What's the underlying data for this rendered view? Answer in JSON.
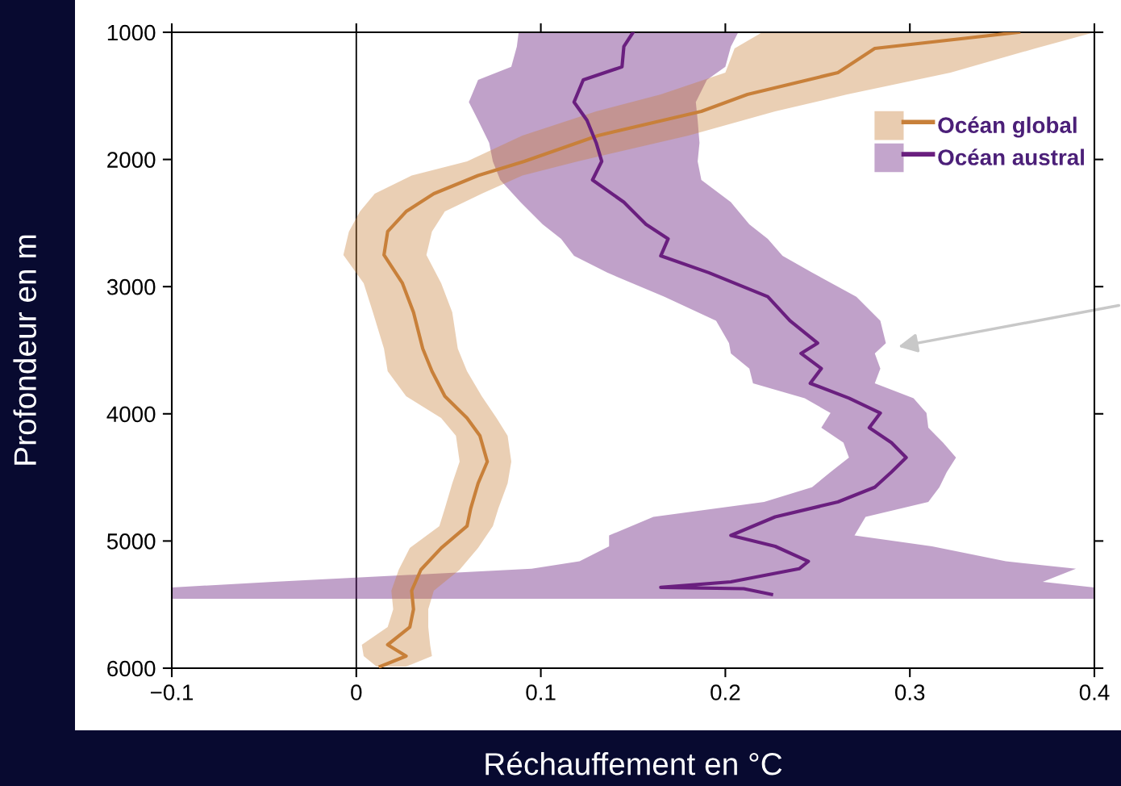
{
  "chart_data": {
    "type": "line",
    "orientation": "horizontal",
    "xlabel": "Réchauffement en °C",
    "ylabel": "Profondeur en m",
    "xlim": [
      -0.1,
      0.4
    ],
    "xticks": [
      {
        "value": -0.1,
        "label": "−0.1"
      },
      0,
      0.1,
      0.2,
      0.3,
      0.4
    ],
    "ylim": [
      6000,
      1000
    ],
    "yticks": [
      1000,
      2000,
      3000,
      4000,
      5000,
      6000
    ],
    "grid": false,
    "legend": "top right",
    "marker": "none",
    "line_style": "solid",
    "ref_lines": [
      {
        "axis": "x",
        "value": 0,
        "color": "#000000"
      }
    ],
    "series": [
      {
        "name": "Océan global",
        "color": "#c8803a",
        "x": [
          1000,
          1127,
          1317,
          1489,
          1622,
          1812,
          2015,
          2126,
          2269,
          2409,
          2567,
          2751,
          2973,
          3202,
          3487,
          3665,
          3862,
          4033,
          4173,
          4376,
          4547,
          4744,
          4883,
          5055,
          5226,
          5391,
          5537,
          5677,
          5816,
          5905,
          5987
        ],
        "values": [
          0.359,
          0.281,
          0.261,
          0.212,
          0.187,
          0.131,
          0.091,
          0.066,
          0.042,
          0.027,
          0.017,
          0.015,
          0.025,
          0.031,
          0.036,
          0.041,
          0.048,
          0.06,
          0.067,
          0.071,
          0.066,
          0.062,
          0.06,
          0.046,
          0.035,
          0.03,
          0.031,
          0.029,
          0.017,
          0.027,
          0.013
        ],
        "lower": [
          0.22,
          0.205,
          0.2,
          0.165,
          0.13,
          0.09,
          0.06,
          0.03,
          0.01,
          0.002,
          -0.004,
          -0.007,
          0.004,
          0.009,
          0.015,
          0.017,
          0.027,
          0.046,
          0.054,
          0.056,
          0.052,
          0.048,
          0.045,
          0.029,
          0.023,
          0.019,
          0.02,
          0.017,
          0.003,
          0.004,
          0.011
        ],
        "upper": [
          0.4,
          0.368,
          0.322,
          0.266,
          0.227,
          0.18,
          0.12,
          0.09,
          0.068,
          0.048,
          0.041,
          0.038,
          0.046,
          0.052,
          0.055,
          0.06,
          0.068,
          0.076,
          0.082,
          0.084,
          0.082,
          0.077,
          0.074,
          0.066,
          0.056,
          0.042,
          0.039,
          0.039,
          0.04,
          0.041,
          0.027
        ]
      },
      {
        "name": "Océan austral",
        "color": "#6a1f7f",
        "x": [
          1000,
          1112,
          1272,
          1374,
          1549,
          1692,
          1869,
          2015,
          2161,
          2336,
          2510,
          2624,
          2758,
          2890,
          3079,
          3268,
          3444,
          3525,
          3644,
          3760,
          3877,
          3994,
          4109,
          4227,
          4344,
          4458,
          4577,
          4693,
          4810,
          4956,
          5042,
          5160,
          5218,
          5321,
          5365,
          5375,
          5420,
          5454
        ],
        "values": [
          0.15,
          0.145,
          0.144,
          0.123,
          0.118,
          0.125,
          0.13,
          0.133,
          0.128,
          0.145,
          0.157,
          0.169,
          0.165,
          0.191,
          0.223,
          0.235,
          0.25,
          0.241,
          0.252,
          0.246,
          0.267,
          0.284,
          0.278,
          0.29,
          0.298,
          0.29,
          0.281,
          0.261,
          0.227,
          0.203,
          0.227,
          0.245,
          0.24,
          0.203,
          0.165,
          0.21,
          0.225,
          null
        ],
        "lower": [
          0.088,
          0.087,
          0.084,
          0.066,
          0.061,
          0.066,
          0.072,
          0.074,
          0.078,
          0.089,
          0.101,
          0.111,
          0.118,
          0.136,
          0.167,
          0.195,
          0.202,
          0.203,
          0.213,
          0.215,
          0.243,
          0.257,
          0.252,
          0.264,
          0.267,
          0.257,
          0.247,
          0.221,
          0.161,
          0.137,
          0.137,
          0.121,
          0.095,
          -0.045,
          -0.1,
          -0.1,
          -0.1,
          -0.1
        ],
        "upper": [
          0.207,
          0.203,
          0.2,
          0.19,
          0.184,
          0.185,
          0.186,
          0.185,
          0.187,
          0.203,
          0.213,
          0.223,
          0.231,
          0.247,
          0.271,
          0.284,
          0.287,
          0.281,
          0.284,
          0.281,
          0.302,
          0.309,
          0.31,
          0.318,
          0.325,
          0.32,
          0.316,
          0.31,
          0.276,
          0.27,
          0.312,
          0.352,
          0.39,
          0.372,
          0.4,
          0.4,
          0.4,
          0.4
        ]
      }
    ]
  }
}
